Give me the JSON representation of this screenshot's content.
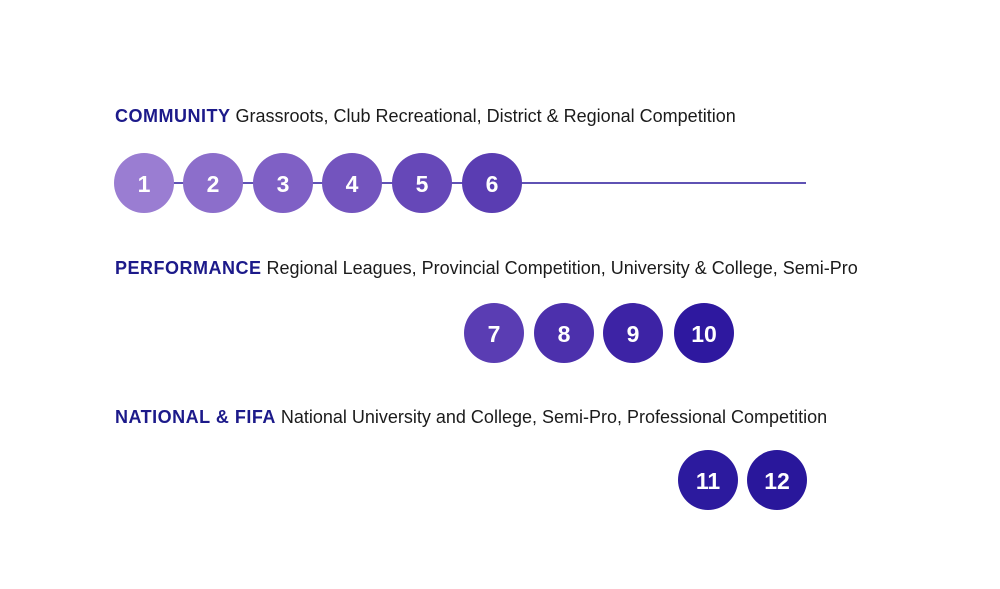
{
  "rows": [
    {
      "level": "COMMUNITY",
      "description": "Grassroots, Club Recreational, District & Regional Competition",
      "nodes": [
        "1",
        "2",
        "3",
        "4",
        "5",
        "6"
      ]
    },
    {
      "level": "PERFORMANCE",
      "description": "Regional Leagues, Provincial Competition, University & College, Semi-Pro",
      "nodes": [
        "7",
        "8",
        "9",
        "10"
      ]
    },
    {
      "level": "NATIONAL & FIFA",
      "description": "National University and College, Semi-Pro, Professional Competition",
      "nodes": [
        "11",
        "12"
      ]
    }
  ]
}
